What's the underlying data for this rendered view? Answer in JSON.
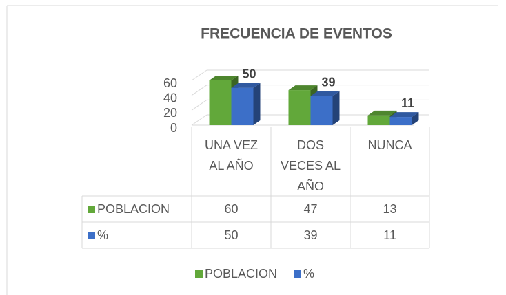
{
  "chart_data": {
    "type": "bar3d",
    "title": "FRECUENCIA DE EVENTOS",
    "categories": [
      "UNA VEZ AL AÑO",
      "DOS VECES AL AÑO",
      "NUNCA"
    ],
    "series": [
      {
        "name": "POBLACION",
        "color": "#62a83a",
        "values": [
          60,
          47,
          13
        ]
      },
      {
        "name": "%",
        "color": "#3c6fc8",
        "values": [
          50,
          39,
          11
        ],
        "data_labels": true
      }
    ],
    "ylim": [
      0,
      60
    ],
    "yticks": [
      0,
      20,
      40,
      60
    ],
    "grid": true,
    "data_table": true,
    "legend": "bottom"
  }
}
